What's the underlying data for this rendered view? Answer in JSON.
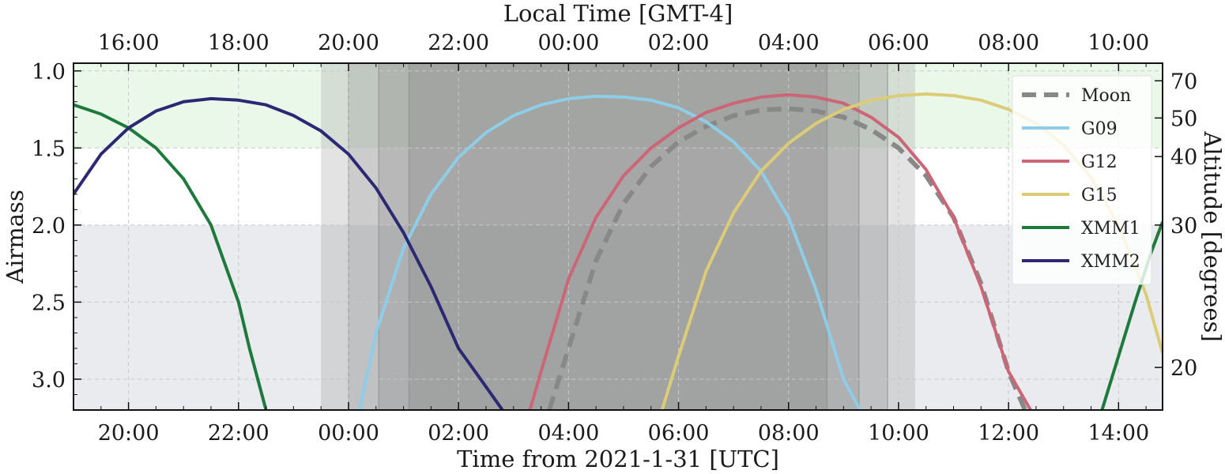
{
  "chart_data": {
    "type": "line",
    "title": "",
    "xlabel": "Time from 2021-1-31 [UTC]",
    "ylabel": "Airmass",
    "top_xlabel": "Local Time [GMT-4]",
    "right_ylabel": "Altitude [degrees]",
    "xlim_hours": [
      -5.0,
      14.8
    ],
    "ylim": [
      3.2,
      0.95
    ],
    "y_inverted": true,
    "grid": true,
    "legend_position": "top-right",
    "x_ticks": [
      {
        "hour": -4,
        "label": "20:00"
      },
      {
        "hour": -2,
        "label": "22:00"
      },
      {
        "hour": 0,
        "label": "00:00"
      },
      {
        "hour": 2,
        "label": "02:00"
      },
      {
        "hour": 4,
        "label": "04:00"
      },
      {
        "hour": 6,
        "label": "06:00"
      },
      {
        "hour": 8,
        "label": "08:00"
      },
      {
        "hour": 10,
        "label": "10:00"
      },
      {
        "hour": 12,
        "label": "12:00"
      },
      {
        "hour": 14,
        "label": "14:00"
      }
    ],
    "top_x_ticks": [
      {
        "hour": 0,
        "label": "16:00"
      },
      {
        "hour": 2,
        "label": "18:00"
      },
      {
        "hour": 4,
        "label": "20:00"
      },
      {
        "hour": 6,
        "label": "22:00"
      },
      {
        "hour": 8,
        "label": "00:00"
      },
      {
        "hour": 10,
        "label": "02:00"
      },
      {
        "hour": 12,
        "label": "04:00"
      },
      {
        "hour": 14,
        "label": "06:00"
      },
      {
        "hour": 16,
        "label": "08:00"
      },
      {
        "hour": 18,
        "label": "10:00"
      }
    ],
    "top_x_offset_hours": -4,
    "y_ticks": [
      {
        "value": 1.0,
        "label": "1.0"
      },
      {
        "value": 1.5,
        "label": "1.5"
      },
      {
        "value": 2.0,
        "label": "2.0"
      },
      {
        "value": 2.5,
        "label": "2.5"
      },
      {
        "value": 3.0,
        "label": "3.0"
      }
    ],
    "right_y_ticks": [
      {
        "altitude": 70,
        "label": "70"
      },
      {
        "altitude": 50,
        "label": "50"
      },
      {
        "altitude": 40,
        "label": "40"
      },
      {
        "altitude": 30,
        "label": "30"
      },
      {
        "altitude": 20,
        "label": "20"
      }
    ],
    "shaded_regions": [
      {
        "name": "good-airmass",
        "y_range": [
          0.95,
          1.5
        ],
        "color": "#eaf8ea"
      },
      {
        "name": "high-airmass",
        "y_range": [
          2.0,
          3.2
        ],
        "color": "#e9ebee"
      }
    ],
    "twilight_bands": [
      {
        "name": "sunset-twilight",
        "x_range": [
          -0.5,
          10.3
        ],
        "color": "#9a9a9a"
      },
      {
        "name": "civil-twilight",
        "x_range": [
          0.0,
          9.8
        ],
        "color": "#8e8e8e"
      },
      {
        "name": "nautical-twilight",
        "x_range": [
          0.55,
          9.28
        ],
        "color": "#868686"
      },
      {
        "name": "astronomical-twilight",
        "x_range": [
          1.1,
          8.7
        ],
        "color": "#7e7e7e"
      }
    ],
    "twilight_lines_hours": [
      0.0,
      0.55,
      1.1,
      8.7,
      9.28,
      9.8
    ],
    "series": [
      {
        "name": "Moon",
        "color": "#888888",
        "dashed": true,
        "x": [
          3.65,
          4.0,
          4.5,
          5.0,
          5.5,
          6.0,
          6.5,
          7.0,
          7.5,
          8.0,
          8.5,
          9.0,
          9.5,
          10.0,
          10.5,
          11.0,
          11.5,
          12.0,
          12.3
        ],
        "y": [
          3.2,
          2.8,
          2.23,
          1.86,
          1.62,
          1.46,
          1.36,
          1.29,
          1.254,
          1.245,
          1.26,
          1.3,
          1.38,
          1.5,
          1.68,
          1.95,
          2.38,
          2.95,
          3.2
        ]
      },
      {
        "name": "G09",
        "color": "#8ecde8",
        "dashed": false,
        "x": [
          0.2,
          0.5,
          1.0,
          1.5,
          2.0,
          2.5,
          3.0,
          3.5,
          4.0,
          4.5,
          5.0,
          5.5,
          6.0,
          6.5,
          7.0,
          7.5,
          8.0,
          8.5,
          9.0,
          9.3
        ],
        "y": [
          3.2,
          2.7,
          2.15,
          1.8,
          1.56,
          1.4,
          1.29,
          1.22,
          1.18,
          1.165,
          1.17,
          1.19,
          1.24,
          1.33,
          1.46,
          1.65,
          1.95,
          2.42,
          3.0,
          3.2
        ]
      },
      {
        "name": "G12",
        "color": "#cc6677",
        "dashed": false,
        "x": [
          3.3,
          3.5,
          4.0,
          4.5,
          5.0,
          5.5,
          6.0,
          6.5,
          7.0,
          7.5,
          8.0,
          8.5,
          9.0,
          9.5,
          10.0,
          10.5,
          11.0,
          11.5,
          12.0,
          12.4
        ],
        "y": [
          3.2,
          2.95,
          2.35,
          1.95,
          1.68,
          1.5,
          1.37,
          1.27,
          1.21,
          1.17,
          1.155,
          1.17,
          1.21,
          1.3,
          1.43,
          1.64,
          1.95,
          2.4,
          2.95,
          3.2
        ]
      },
      {
        "name": "G15",
        "color": "#ddcc77",
        "dashed": false,
        "x": [
          5.7,
          6.0,
          6.5,
          7.0,
          7.5,
          8.0,
          8.5,
          9.0,
          9.5,
          10.0,
          10.5,
          11.0,
          11.5,
          12.0,
          12.5,
          13.0,
          13.5,
          14.0,
          14.5,
          14.8
        ],
        "y": [
          3.2,
          2.85,
          2.3,
          1.92,
          1.65,
          1.47,
          1.34,
          1.25,
          1.19,
          1.16,
          1.15,
          1.16,
          1.19,
          1.25,
          1.34,
          1.48,
          1.69,
          2.0,
          2.45,
          2.83
        ]
      },
      {
        "name": "XMM1",
        "color": "#1e7a3c",
        "dashed": false,
        "x": [
          -5.0,
          -4.5,
          -4.0,
          -3.5,
          -3.0,
          -2.5,
          -2.0,
          -1.8,
          -1.5,
          null,
          13.7,
          14.0,
          14.3,
          14.6,
          14.8
        ],
        "y": [
          1.22,
          1.28,
          1.37,
          1.5,
          1.7,
          2.0,
          2.5,
          2.8,
          3.2,
          null,
          3.2,
          2.85,
          2.5,
          2.17,
          1.98
        ]
      },
      {
        "name": "XMM2",
        "color": "#2b2874",
        "dashed": false,
        "x": [
          -5.0,
          -4.5,
          -4.0,
          -3.5,
          -3.0,
          -2.5,
          -2.0,
          -1.5,
          -1.0,
          -0.5,
          0.0,
          0.5,
          1.0,
          1.5,
          2.0,
          2.5,
          2.8
        ],
        "y": [
          1.8,
          1.54,
          1.37,
          1.26,
          1.2,
          1.18,
          1.19,
          1.22,
          1.29,
          1.39,
          1.54,
          1.76,
          2.05,
          2.4,
          2.8,
          3.05,
          3.2
        ]
      }
    ],
    "legend": [
      {
        "name": "Moon",
        "color": "#888888",
        "dashed": true
      },
      {
        "name": "G09",
        "color": "#8ecde8",
        "dashed": false
      },
      {
        "name": "G12",
        "color": "#cc6677",
        "dashed": false
      },
      {
        "name": "G15",
        "color": "#ddcc77",
        "dashed": false
      },
      {
        "name": "XMM1",
        "color": "#1e7a3c",
        "dashed": false
      },
      {
        "name": "XMM2",
        "color": "#2b2874",
        "dashed": false
      }
    ]
  }
}
